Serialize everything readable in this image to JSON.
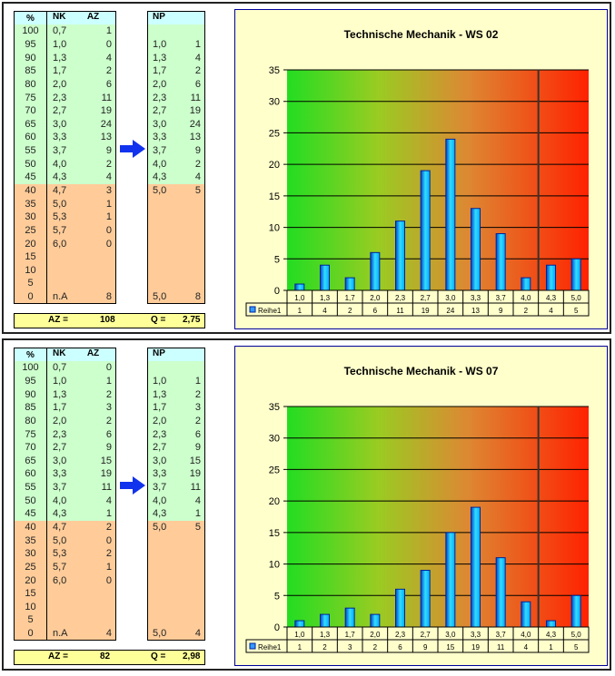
{
  "colors": {
    "pass": "#ccffcc",
    "fail": "#ffcc99",
    "header": "#ccffff",
    "summary": "#ffff99",
    "chart_bg": "#ffffcc",
    "bar": "#33ccff"
  },
  "panels": [
    {
      "headers": {
        "pct": "%",
        "nk": "NK",
        "az": "AZ",
        "np": "NP"
      },
      "rows": [
        [
          "100",
          "0,7",
          "1"
        ],
        [
          "95",
          "1,0",
          "0"
        ],
        [
          "90",
          "1,3",
          "4"
        ],
        [
          "85",
          "1,7",
          "2"
        ],
        [
          "80",
          "2,0",
          "6"
        ],
        [
          "75",
          "2,3",
          "11"
        ],
        [
          "70",
          "2,7",
          "19"
        ],
        [
          "65",
          "3,0",
          "24"
        ],
        [
          "60",
          "3,3",
          "13"
        ],
        [
          "55",
          "3,7",
          "9"
        ],
        [
          "50",
          "4,0",
          "2"
        ],
        [
          "45",
          "4,3",
          "4"
        ],
        [
          "40",
          "4,7",
          "3"
        ],
        [
          "35",
          "5,0",
          "1"
        ],
        [
          "30",
          "5,3",
          "1"
        ],
        [
          "25",
          "5,7",
          "0"
        ],
        [
          "20",
          "6,0",
          "0"
        ],
        [
          "15",
          "",
          ""
        ],
        [
          "10",
          "",
          ""
        ],
        [
          "5",
          "",
          ""
        ],
        [
          "0",
          "n.A",
          "8"
        ]
      ],
      "np_rows": [
        [
          "",
          ""
        ],
        [
          "1,0",
          "1"
        ],
        [
          "1,3",
          "4"
        ],
        [
          "1,7",
          "2"
        ],
        [
          "2,0",
          "6"
        ],
        [
          "2,3",
          "11"
        ],
        [
          "2,7",
          "19"
        ],
        [
          "3,0",
          "24"
        ],
        [
          "3,3",
          "13"
        ],
        [
          "3,7",
          "9"
        ],
        [
          "4,0",
          "2"
        ],
        [
          "4,3",
          "4"
        ],
        [
          "5,0",
          "5"
        ],
        [
          "",
          ""
        ],
        [
          "",
          ""
        ],
        [
          "",
          ""
        ],
        [
          "",
          ""
        ],
        [
          "",
          ""
        ],
        [
          "",
          ""
        ],
        [
          "",
          ""
        ],
        [
          "5,0",
          "8"
        ]
      ],
      "summary": {
        "az_label": "AZ =",
        "az": "108",
        "q_label": "Q =",
        "q": "2,75"
      }
    },
    {
      "headers": {
        "pct": "%",
        "nk": "NK",
        "az": "AZ",
        "np": "NP"
      },
      "rows": [
        [
          "100",
          "0,7",
          "0"
        ],
        [
          "95",
          "1,0",
          "1"
        ],
        [
          "90",
          "1,3",
          "2"
        ],
        [
          "85",
          "1,7",
          "3"
        ],
        [
          "80",
          "2,0",
          "2"
        ],
        [
          "75",
          "2,3",
          "6"
        ],
        [
          "70",
          "2,7",
          "9"
        ],
        [
          "65",
          "3,0",
          "15"
        ],
        [
          "60",
          "3,3",
          "19"
        ],
        [
          "55",
          "3,7",
          "11"
        ],
        [
          "50",
          "4,0",
          "4"
        ],
        [
          "45",
          "4,3",
          "1"
        ],
        [
          "40",
          "4,7",
          "2"
        ],
        [
          "35",
          "5,0",
          "0"
        ],
        [
          "30",
          "5,3",
          "2"
        ],
        [
          "25",
          "5,7",
          "1"
        ],
        [
          "20",
          "6,0",
          "0"
        ],
        [
          "15",
          "",
          ""
        ],
        [
          "10",
          "",
          ""
        ],
        [
          "5",
          "",
          ""
        ],
        [
          "0",
          "n.A",
          "4"
        ]
      ],
      "np_rows": [
        [
          "",
          ""
        ],
        [
          "1,0",
          "1"
        ],
        [
          "1,3",
          "2"
        ],
        [
          "1,7",
          "3"
        ],
        [
          "2,0",
          "2"
        ],
        [
          "2,3",
          "6"
        ],
        [
          "2,7",
          "9"
        ],
        [
          "3,0",
          "15"
        ],
        [
          "3,3",
          "19"
        ],
        [
          "3,7",
          "11"
        ],
        [
          "4,0",
          "4"
        ],
        [
          "4,3",
          "1"
        ],
        [
          "5,0",
          "5"
        ],
        [
          "",
          ""
        ],
        [
          "",
          ""
        ],
        [
          "",
          ""
        ],
        [
          "",
          ""
        ],
        [
          "",
          ""
        ],
        [
          "",
          ""
        ],
        [
          "",
          ""
        ],
        [
          "5,0",
          "4"
        ]
      ],
      "summary": {
        "az_label": "AZ =",
        "az": "82",
        "q_label": "Q =",
        "q": "2,98"
      }
    }
  ],
  "chart_data": [
    {
      "type": "bar",
      "title": "Technische Mechanik - WS 02",
      "categories": [
        "1,0",
        "1,3",
        "1,7",
        "2,0",
        "2,3",
        "2,7",
        "3,0",
        "3,3",
        "3,7",
        "4,0",
        "4,3",
        "5,0"
      ],
      "series": [
        {
          "name": "Reihe1",
          "values": [
            1,
            4,
            2,
            6,
            11,
            19,
            24,
            13,
            9,
            2,
            4,
            5
          ]
        }
      ],
      "ylim": [
        0,
        35
      ],
      "yticks": [
        "0",
        "5",
        "10",
        "15",
        "20",
        "25",
        "30",
        "35"
      ],
      "grid": true,
      "legend": "data-table"
    },
    {
      "type": "bar",
      "title": "Technische Mechanik - WS 07",
      "categories": [
        "1,0",
        "1,3",
        "1,7",
        "2,0",
        "2,3",
        "2,7",
        "3,0",
        "3,3",
        "3,7",
        "4,0",
        "4,3",
        "5,0"
      ],
      "series": [
        {
          "name": "Reihe1",
          "values": [
            1,
            2,
            3,
            2,
            6,
            9,
            15,
            19,
            11,
            4,
            1,
            5
          ]
        }
      ],
      "ylim": [
        0,
        35
      ],
      "yticks": [
        "0",
        "5",
        "10",
        "15",
        "20",
        "25",
        "30",
        "35"
      ],
      "grid": true,
      "legend": "data-table"
    }
  ]
}
